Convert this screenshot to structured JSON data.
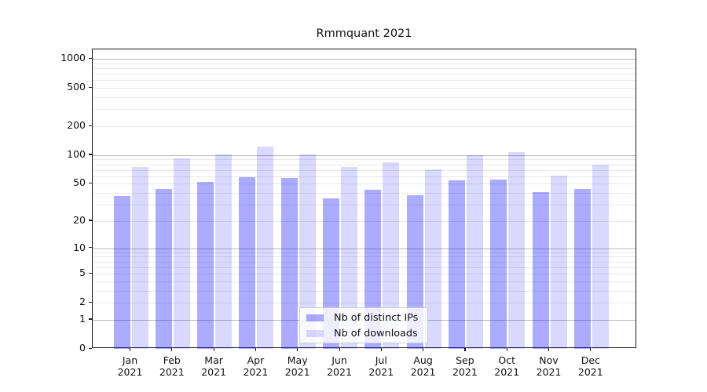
{
  "title": "Rmmquant 2021",
  "chart_data": {
    "type": "bar",
    "title": "Rmmquant 2021",
    "categories": [
      "Jan 2021",
      "Feb 2021",
      "Mar 2021",
      "Apr 2021",
      "May 2021",
      "Jun 2021",
      "Jul 2021",
      "Aug 2021",
      "Sep 2021",
      "Oct 2021",
      "Nov 2021",
      "Dec 2021"
    ],
    "series": [
      {
        "name": "Nb of distinct IPs",
        "color": "rgba(0,0,255,0.33)",
        "values": [
          37,
          44,
          52,
          59,
          58,
          35,
          43,
          38,
          54,
          56,
          41,
          44
        ]
      },
      {
        "name": "Nb of downloads",
        "color": "rgba(0,0,255,0.15)",
        "values": [
          75,
          92,
          101,
          122,
          101,
          75,
          84,
          71,
          100,
          108,
          61,
          80
        ]
      }
    ],
    "yscale": "log1p",
    "ytick_values": [
      0,
      1,
      2,
      5,
      10,
      20,
      50,
      100,
      200,
      500,
      1000
    ],
    "ytick_labels": [
      "0",
      "1",
      "2",
      "5",
      "10",
      "20",
      "50",
      "100",
      "200",
      "500",
      "1000"
    ],
    "ylim": [
      0,
      1253
    ],
    "grid": true,
    "legend_position": "lower center",
    "colors": {
      "major_grid": "#b9b9b9",
      "minor_grid": "#e9e9e9",
      "spine": "#1a1a1a"
    }
  }
}
